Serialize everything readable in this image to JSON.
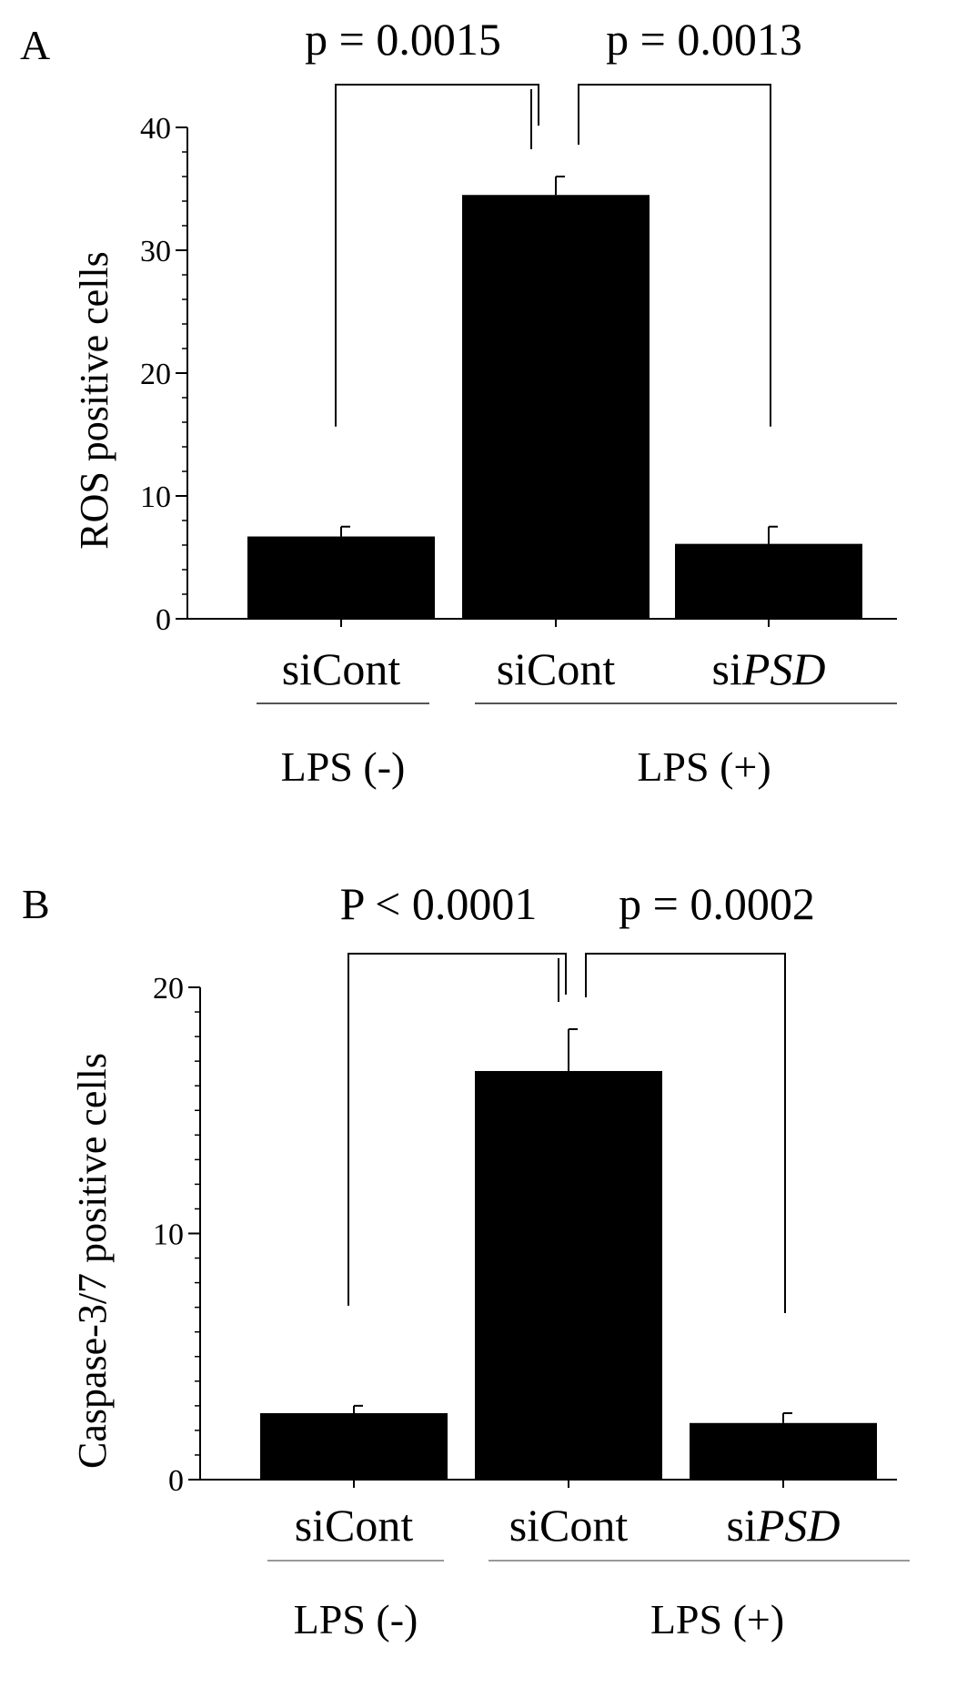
{
  "chart_data": [
    {
      "type": "bar",
      "panel_label": "A",
      "ylabel": "ROS positive cells",
      "ylim": [
        0,
        40
      ],
      "yticks": [
        0,
        10,
        20,
        30,
        40
      ],
      "yminor_step": 2,
      "categories": [
        "siCont",
        "siCont",
        "siPSD"
      ],
      "category_labels": [
        {
          "prefix": "siCont",
          "italic": ""
        },
        {
          "prefix": "siCont",
          "italic": ""
        },
        {
          "prefix": "si",
          "italic": "PSD"
        }
      ],
      "values": [
        6.7,
        34.5,
        6.1
      ],
      "errors": [
        0.8,
        1.5,
        1.4
      ],
      "groups": [
        {
          "label": "LPS (-)",
          "from": 0,
          "to": 0
        },
        {
          "label": "LPS (+)",
          "from": 1,
          "to": 2
        }
      ],
      "comparisons": [
        {
          "label": "p = 0.0015",
          "from": 0,
          "to": 1
        },
        {
          "label": "p = 0.0013",
          "from": 1,
          "to": 2
        }
      ],
      "bar_color": "#000000",
      "group_line_color": "#555555"
    },
    {
      "type": "bar",
      "panel_label": "B",
      "ylabel": "Caspase-3/7 positive cells",
      "ylim": [
        0,
        20
      ],
      "yticks": [
        0,
        10,
        20
      ],
      "yminor_step": 1,
      "categories": [
        "siCont",
        "siCont",
        "siPSD"
      ],
      "category_labels": [
        {
          "prefix": "siCont",
          "italic": ""
        },
        {
          "prefix": "siCont",
          "italic": ""
        },
        {
          "prefix": "si",
          "italic": "PSD"
        }
      ],
      "values": [
        2.7,
        16.6,
        2.3
      ],
      "errors": [
        0.3,
        1.7,
        0.4
      ],
      "groups": [
        {
          "label": "LPS (-)",
          "from": 0,
          "to": 0
        },
        {
          "label": "LPS (+)",
          "from": 1,
          "to": 2
        }
      ],
      "comparisons": [
        {
          "label": "P < 0.0001",
          "from": 0,
          "to": 1
        },
        {
          "label": "p = 0.0002",
          "from": 1,
          "to": 2
        }
      ],
      "bar_color": "#000000",
      "group_line_color": "#999999"
    }
  ]
}
